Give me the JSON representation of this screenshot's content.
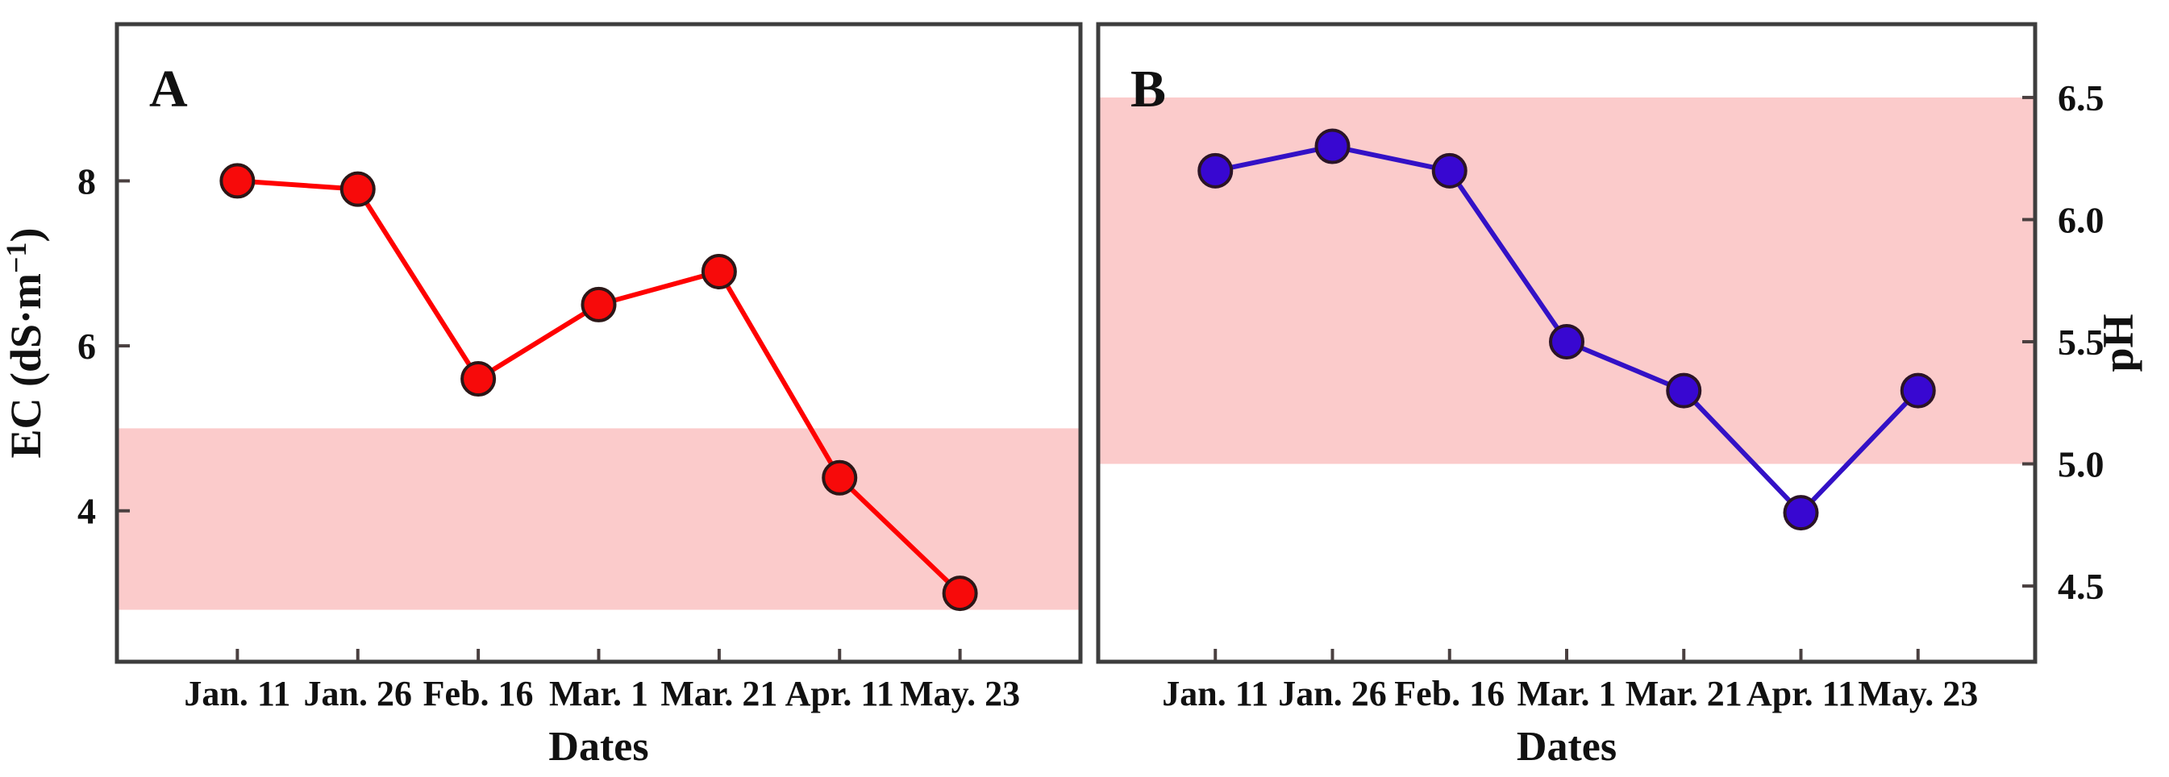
{
  "styles": {
    "background": "#ffffff",
    "frame_color": "#3d3d3d",
    "tick_color": "#4a4040",
    "text_color": "#111111",
    "band_color": "#fbcbcb"
  },
  "chart_data": [
    {
      "type": "line",
      "panel_label": "A",
      "categories": [
        "Jan. 11",
        "Jan. 26",
        "Feb. 16",
        "Mar. 1",
        "Mar. 21",
        "Apr. 11",
        "May. 23"
      ],
      "values": [
        8.0,
        7.9,
        5.6,
        6.5,
        6.9,
        4.4,
        3.0
      ],
      "xlabel": "Dates",
      "ylabel": "EC (dS·m⁻¹)",
      "ylabel_parts": [
        {
          "text": "EC (dS·m"
        },
        {
          "text": "−1",
          "sup": true
        },
        {
          "text": ")"
        }
      ],
      "yaxis_side": "left",
      "yticks": [
        {
          "value": 8,
          "label": "8"
        },
        {
          "value": 6,
          "label": "6"
        },
        {
          "value": 4,
          "label": "4"
        }
      ],
      "ylim": [
        2.17,
        9.9
      ],
      "grid": false,
      "reference_band": {
        "from": 2.8,
        "to": 5.0,
        "color": "#fbcbcb"
      },
      "line_color": "#ff0000",
      "marker_color": "#f70a0a",
      "marker_stroke": "#2b1717"
    },
    {
      "type": "line",
      "panel_label": "B",
      "categories": [
        "Jan. 11",
        "Jan. 26",
        "Feb. 16",
        "Mar. 1",
        "Mar. 21",
        "Apr. 11",
        "May. 23"
      ],
      "values": [
        6.2,
        6.3,
        6.2,
        5.5,
        5.3,
        4.8,
        5.3
      ],
      "xlabel": "Dates",
      "ylabel": "pH",
      "ylabel_parts": [
        {
          "text": "pH"
        }
      ],
      "yaxis_side": "right",
      "yticks": [
        {
          "value": 6.5,
          "label": "6.5"
        },
        {
          "value": 6.0,
          "label": "6.0"
        },
        {
          "value": 5.5,
          "label": "5.5"
        },
        {
          "value": 5.0,
          "label": "5.0"
        },
        {
          "value": 4.5,
          "label": "4.5"
        }
      ],
      "ylim": [
        4.19,
        6.8
      ],
      "grid": false,
      "reference_band": {
        "from": 5.0,
        "to": 6.5,
        "color": "#fbcbcb"
      },
      "line_color": "#3311c6",
      "marker_color": "#3807d1",
      "marker_stroke": "#2b1426"
    }
  ]
}
